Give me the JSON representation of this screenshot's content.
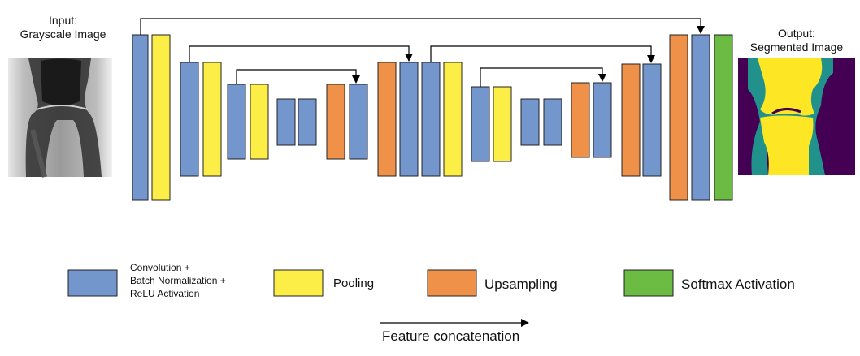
{
  "input": {
    "label_line1": "Input:",
    "label_line2": "Grayscale Image"
  },
  "output": {
    "label_line1": "Output:",
    "label_line2": "Segmented Image"
  },
  "colors": {
    "conv": "#7396cc",
    "pool": "#fcee47",
    "upsample": "#f0914a",
    "softmax": "#6cbb43",
    "seg_background": "#440154",
    "seg_teal": "#21918c",
    "seg_yellow": "#fde725"
  },
  "legend": {
    "conv_line1": "Convolution +",
    "conv_line2": "Batch Normalization +",
    "conv_line3": "ReLU Activation",
    "pool": "Pooling",
    "upsample": "Upsampling",
    "softmax": "Softmax Activation",
    "concat": "Feature concatenation"
  }
}
